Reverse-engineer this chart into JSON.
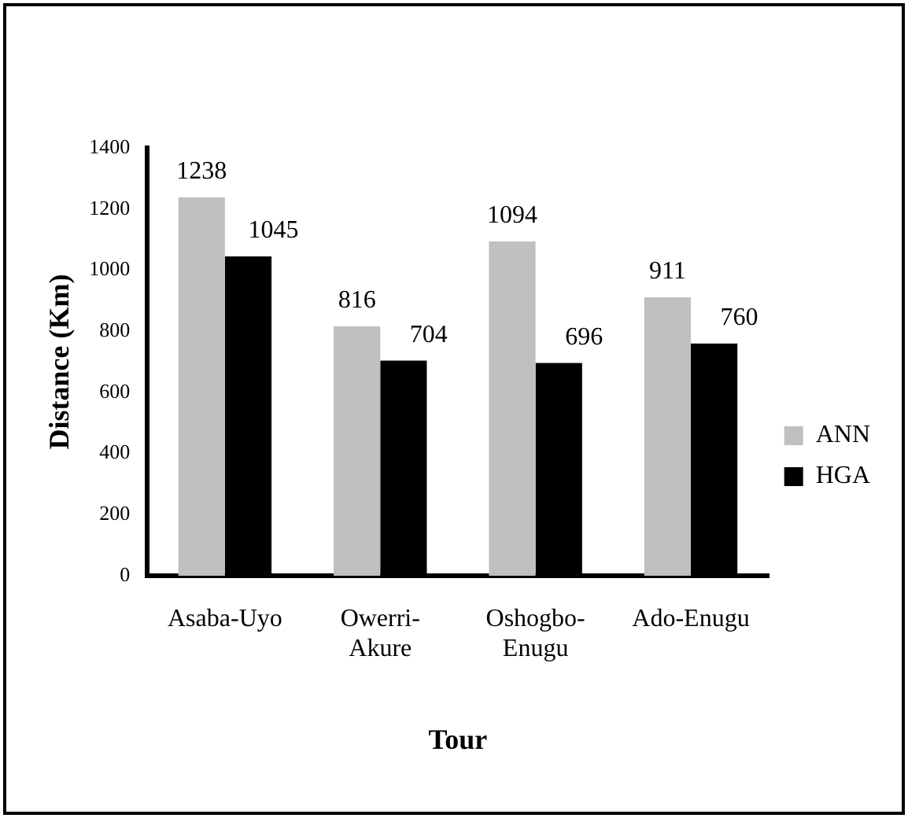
{
  "chart_data": {
    "type": "bar",
    "xlabel": "Tour",
    "ylabel": "Distance (Km)",
    "categories": [
      "Asaba-Uyo",
      "Owerri-Akure",
      "Oshogbo-Enugu",
      "Ado-Enugu"
    ],
    "series": [
      {
        "name": "ANN",
        "color": "#c0c0c0",
        "values": [
          1238,
          816,
          1094,
          911
        ]
      },
      {
        "name": "HGA",
        "color": "#000000",
        "values": [
          1045,
          704,
          696,
          760
        ]
      }
    ],
    "ylim": [
      0,
      1400
    ],
    "yticks": [
      0,
      200,
      400,
      600,
      800,
      1000,
      1200,
      1400
    ],
    "grid": false,
    "legend": "right",
    "data_labels": true
  }
}
